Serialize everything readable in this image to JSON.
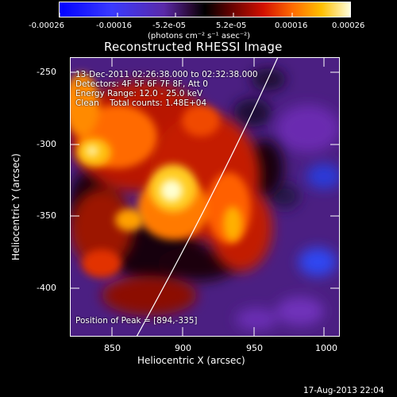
{
  "colorbar": {
    "ticks": [
      "-0.00026",
      "-0.00016",
      "-5.2e-05",
      "5.2e-05",
      "0.00016",
      "0.00026"
    ],
    "units": "(photons cm⁻² s⁻¹ asec⁻²)"
  },
  "plot": {
    "title": "Reconstructed RHESSI Image",
    "xlabel": "Heliocentric X (arcsec)",
    "ylabel": "Heliocentric Y (arcsec)",
    "xticks": [
      "850",
      "900",
      "950",
      "1000"
    ],
    "yticks": [
      "-250",
      "-300",
      "-350",
      "-400"
    ]
  },
  "annotation": {
    "time_range": "13-Dec-2011 02:26:38.000 to 02:32:38.000",
    "detectors": "Detectors: 4F 5F 6F 7F 8F, Att 0",
    "energy": "Energy Range: 12.0 - 25.0 keV",
    "clean": "Clean    Total counts: 1.48E+04",
    "peak": "Position of Peak = [894,-335]"
  },
  "footer": {
    "date": "17-Aug-2013 22:04"
  }
}
